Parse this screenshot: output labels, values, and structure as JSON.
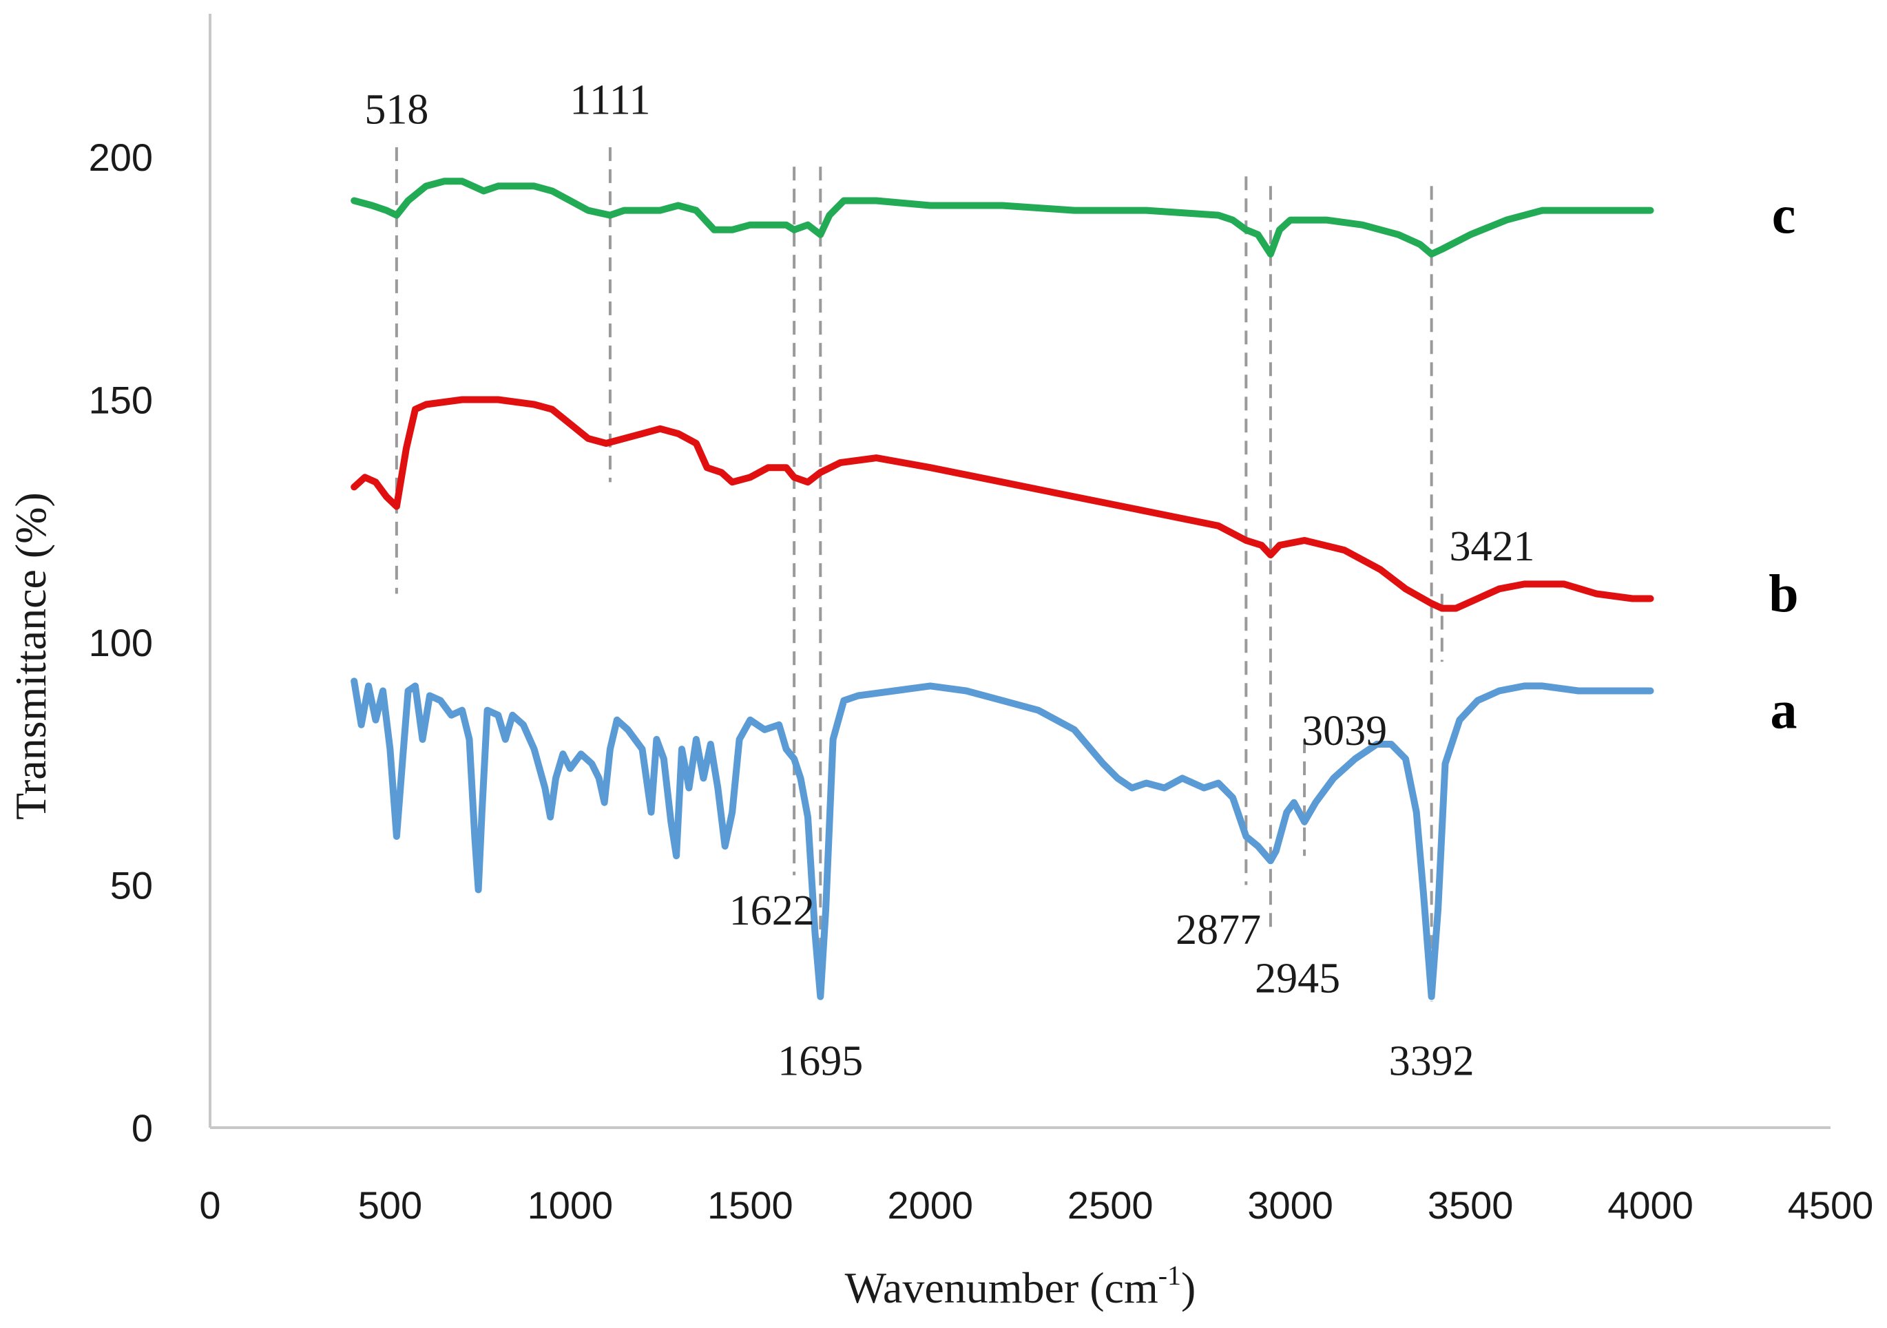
{
  "chart_data": {
    "type": "line",
    "xlabel": "Wavenumber (cm-1)",
    "xlabel_main": "Wavenumber (cm",
    "xlabel_sup": "-1",
    "xlabel_close": ")",
    "ylabel": "Transmittance (%)",
    "xlim": [
      0,
      4500
    ],
    "ylim": [
      0,
      200
    ],
    "x_ticks": [
      "0",
      "500",
      "1000",
      "1500",
      "2000",
      "2500",
      "3000",
      "3500",
      "4000",
      "4500"
    ],
    "y_ticks": [
      "0",
      "50",
      "100",
      "150",
      "200"
    ],
    "grid": false,
    "legend": "none",
    "series": [
      {
        "name": "a",
        "color": "#5b9bd5",
        "points": [
          [
            400,
            92
          ],
          [
            420,
            83
          ],
          [
            440,
            91
          ],
          [
            460,
            84
          ],
          [
            480,
            90
          ],
          [
            500,
            78
          ],
          [
            518,
            60
          ],
          [
            535,
            76
          ],
          [
            550,
            90
          ],
          [
            570,
            91
          ],
          [
            590,
            80
          ],
          [
            610,
            89
          ],
          [
            640,
            88
          ],
          [
            670,
            85
          ],
          [
            700,
            86
          ],
          [
            720,
            80
          ],
          [
            735,
            60
          ],
          [
            745,
            49
          ],
          [
            755,
            65
          ],
          [
            770,
            86
          ],
          [
            800,
            85
          ],
          [
            820,
            80
          ],
          [
            840,
            85
          ],
          [
            870,
            83
          ],
          [
            900,
            78
          ],
          [
            930,
            70
          ],
          [
            945,
            64
          ],
          [
            960,
            72
          ],
          [
            980,
            77
          ],
          [
            1000,
            74
          ],
          [
            1030,
            77
          ],
          [
            1060,
            75
          ],
          [
            1080,
            72
          ],
          [
            1095,
            67
          ],
          [
            1111,
            78
          ],
          [
            1130,
            84
          ],
          [
            1160,
            82
          ],
          [
            1200,
            78
          ],
          [
            1225,
            65
          ],
          [
            1240,
            80
          ],
          [
            1260,
            76
          ],
          [
            1280,
            63
          ],
          [
            1295,
            56
          ],
          [
            1310,
            78
          ],
          [
            1330,
            70
          ],
          [
            1350,
            80
          ],
          [
            1370,
            72
          ],
          [
            1390,
            79
          ],
          [
            1410,
            70
          ],
          [
            1430,
            58
          ],
          [
            1450,
            65
          ],
          [
            1470,
            80
          ],
          [
            1500,
            84
          ],
          [
            1540,
            82
          ],
          [
            1580,
            83
          ],
          [
            1600,
            78
          ],
          [
            1622,
            76
          ],
          [
            1640,
            72
          ],
          [
            1660,
            64
          ],
          [
            1680,
            40
          ],
          [
            1695,
            27
          ],
          [
            1710,
            45
          ],
          [
            1730,
            80
          ],
          [
            1760,
            88
          ],
          [
            1800,
            89
          ],
          [
            1900,
            90
          ],
          [
            2000,
            91
          ],
          [
            2100,
            90
          ],
          [
            2200,
            88
          ],
          [
            2300,
            86
          ],
          [
            2400,
            82
          ],
          [
            2480,
            75
          ],
          [
            2520,
            72
          ],
          [
            2560,
            70
          ],
          [
            2600,
            71
          ],
          [
            2650,
            70
          ],
          [
            2700,
            72
          ],
          [
            2760,
            70
          ],
          [
            2800,
            71
          ],
          [
            2840,
            68
          ],
          [
            2877,
            60
          ],
          [
            2910,
            58
          ],
          [
            2945,
            55
          ],
          [
            2960,
            57
          ],
          [
            2990,
            65
          ],
          [
            3010,
            67
          ],
          [
            3039,
            63
          ],
          [
            3070,
            67
          ],
          [
            3120,
            72
          ],
          [
            3180,
            76
          ],
          [
            3240,
            79
          ],
          [
            3280,
            79
          ],
          [
            3320,
            76
          ],
          [
            3350,
            65
          ],
          [
            3370,
            48
          ],
          [
            3392,
            27
          ],
          [
            3410,
            45
          ],
          [
            3430,
            75
          ],
          [
            3470,
            84
          ],
          [
            3520,
            88
          ],
          [
            3580,
            90
          ],
          [
            3650,
            91
          ],
          [
            3700,
            91
          ],
          [
            3800,
            90
          ],
          [
            3900,
            90
          ],
          [
            4000,
            90
          ]
        ]
      },
      {
        "name": "b",
        "color": "#e01010",
        "points": [
          [
            400,
            132
          ],
          [
            430,
            134
          ],
          [
            460,
            133
          ],
          [
            490,
            130
          ],
          [
            518,
            128
          ],
          [
            545,
            140
          ],
          [
            570,
            148
          ],
          [
            600,
            149
          ],
          [
            700,
            150
          ],
          [
            800,
            150
          ],
          [
            900,
            149
          ],
          [
            950,
            148
          ],
          [
            1000,
            145
          ],
          [
            1050,
            142
          ],
          [
            1100,
            141
          ],
          [
            1150,
            142
          ],
          [
            1200,
            143
          ],
          [
            1250,
            144
          ],
          [
            1300,
            143
          ],
          [
            1350,
            141
          ],
          [
            1380,
            136
          ],
          [
            1420,
            135
          ],
          [
            1450,
            133
          ],
          [
            1500,
            134
          ],
          [
            1550,
            136
          ],
          [
            1600,
            136
          ],
          [
            1622,
            134
          ],
          [
            1660,
            133
          ],
          [
            1695,
            135
          ],
          [
            1750,
            137
          ],
          [
            1850,
            138
          ],
          [
            2000,
            136
          ],
          [
            2200,
            133
          ],
          [
            2400,
            130
          ],
          [
            2600,
            127
          ],
          [
            2800,
            124
          ],
          [
            2877,
            121
          ],
          [
            2920,
            120
          ],
          [
            2945,
            118
          ],
          [
            2970,
            120
          ],
          [
            3039,
            121
          ],
          [
            3150,
            119
          ],
          [
            3250,
            115
          ],
          [
            3320,
            111
          ],
          [
            3392,
            108
          ],
          [
            3421,
            107
          ],
          [
            3460,
            107
          ],
          [
            3520,
            109
          ],
          [
            3580,
            111
          ],
          [
            3650,
            112
          ],
          [
            3700,
            112
          ],
          [
            3760,
            112
          ],
          [
            3850,
            110
          ],
          [
            3950,
            109
          ],
          [
            4000,
            109
          ]
        ]
      },
      {
        "name": "c",
        "color": "#22aa55",
        "points": [
          [
            400,
            191
          ],
          [
            450,
            190
          ],
          [
            490,
            189
          ],
          [
            518,
            188
          ],
          [
            550,
            191
          ],
          [
            600,
            194
          ],
          [
            650,
            195
          ],
          [
            700,
            195
          ],
          [
            730,
            194
          ],
          [
            760,
            193
          ],
          [
            800,
            194
          ],
          [
            850,
            194
          ],
          [
            900,
            194
          ],
          [
            950,
            193
          ],
          [
            1000,
            191
          ],
          [
            1050,
            189
          ],
          [
            1111,
            188
          ],
          [
            1150,
            189
          ],
          [
            1200,
            189
          ],
          [
            1250,
            189
          ],
          [
            1300,
            190
          ],
          [
            1350,
            189
          ],
          [
            1400,
            185
          ],
          [
            1450,
            185
          ],
          [
            1500,
            186
          ],
          [
            1550,
            186
          ],
          [
            1600,
            186
          ],
          [
            1622,
            185
          ],
          [
            1660,
            186
          ],
          [
            1695,
            184
          ],
          [
            1720,
            188
          ],
          [
            1760,
            191
          ],
          [
            1850,
            191
          ],
          [
            2000,
            190
          ],
          [
            2200,
            190
          ],
          [
            2400,
            189
          ],
          [
            2600,
            189
          ],
          [
            2800,
            188
          ],
          [
            2840,
            187
          ],
          [
            2877,
            185
          ],
          [
            2910,
            184
          ],
          [
            2945,
            180
          ],
          [
            2970,
            185
          ],
          [
            3000,
            187
          ],
          [
            3039,
            187
          ],
          [
            3100,
            187
          ],
          [
            3200,
            186
          ],
          [
            3300,
            184
          ],
          [
            3360,
            182
          ],
          [
            3392,
            180
          ],
          [
            3421,
            181
          ],
          [
            3500,
            184
          ],
          [
            3600,
            187
          ],
          [
            3700,
            189
          ],
          [
            3800,
            189
          ],
          [
            3900,
            189
          ],
          [
            4000,
            189
          ]
        ]
      }
    ],
    "series_labels": [
      {
        "text": "c",
        "y": 188
      },
      {
        "text": "b",
        "y": 110
      },
      {
        "text": "a",
        "y": 86
      }
    ],
    "guides": [
      {
        "x": 518,
        "y_from": 110,
        "y_to": 202
      },
      {
        "x": 1111,
        "y_from": 133,
        "y_to": 202
      },
      {
        "x": 1622,
        "y_from": 52,
        "y_to": 198
      },
      {
        "x": 1695,
        "y_from": 26,
        "y_to": 198
      },
      {
        "x": 2877,
        "y_from": 50,
        "y_to": 196
      },
      {
        "x": 2945,
        "y_from": 40,
        "y_to": 194
      },
      {
        "x": 3039,
        "y_from": 56,
        "y_to": 80
      },
      {
        "x": 3392,
        "y_from": 26,
        "y_to": 194
      },
      {
        "x": 3421,
        "y_from": 96,
        "y_to": 110
      }
    ],
    "annotations": [
      {
        "text": "518",
        "x": 518,
        "y": 210
      },
      {
        "text": "1111",
        "x": 1111,
        "y": 212
      },
      {
        "text": "1622",
        "x": 1560,
        "y": 45
      },
      {
        "text": "1695",
        "x": 1695,
        "y": 14
      },
      {
        "text": "2877",
        "x": 2800,
        "y": 41
      },
      {
        "text": "2945",
        "x": 3020,
        "y": 31
      },
      {
        "text": "3039",
        "x": 3150,
        "y": 82
      },
      {
        "text": "3392",
        "x": 3392,
        "y": 14
      },
      {
        "text": "3421",
        "x": 3560,
        "y": 120
      }
    ]
  }
}
